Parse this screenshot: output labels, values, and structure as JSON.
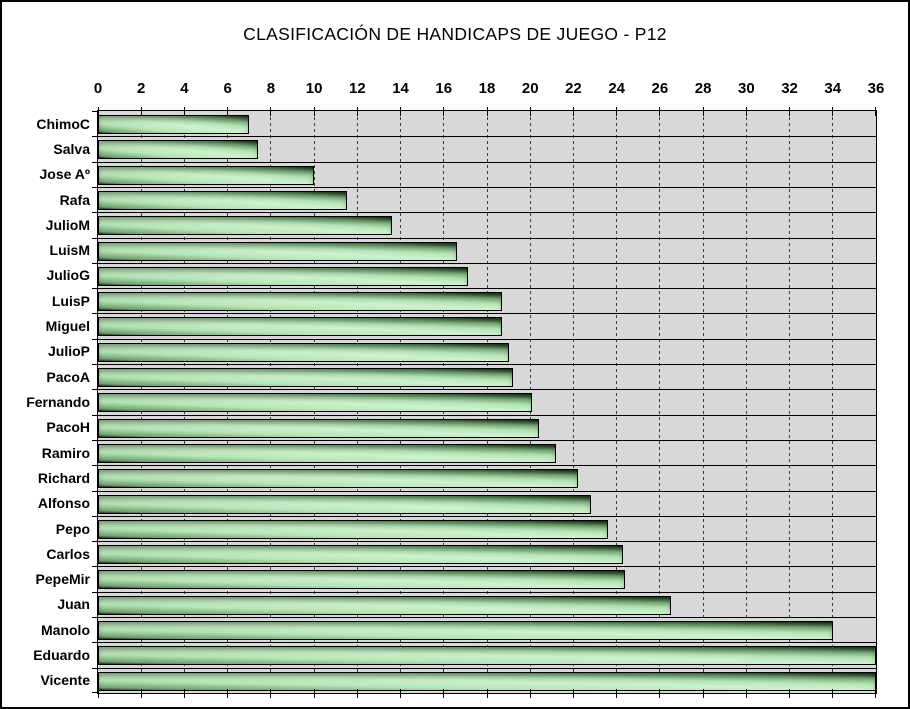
{
  "chart_data": {
    "type": "bar",
    "orientation": "horizontal",
    "title": "CLASIFICACIÓN DE HANDICAPS DE JUEGO - P12",
    "categories": [
      "ChimoC",
      "Salva",
      "Jose Aº",
      "Rafa",
      "JulioM",
      "LuisM",
      "JulioG",
      "LuisP",
      "Miguel",
      "JulioP",
      "PacoA",
      "Fernando",
      "PacoH",
      "Ramiro",
      "Richard",
      "Alfonso",
      "Pepo",
      "Carlos",
      "PepeMir",
      "Juan",
      "Manolo",
      "Eduardo",
      "Vicente"
    ],
    "values": [
      7.0,
      7.4,
      10.0,
      11.5,
      13.6,
      16.6,
      17.1,
      18.7,
      18.7,
      19.0,
      19.2,
      20.1,
      20.4,
      21.2,
      22.2,
      22.8,
      23.6,
      24.3,
      24.4,
      26.5,
      34.0,
      36.0,
      36.0
    ],
    "xlabel": "",
    "ylabel": "",
    "xlim": [
      0,
      36
    ],
    "x_tick_step": 2,
    "x_tick_labels": [
      "0",
      "2",
      "4",
      "6",
      "8",
      "10",
      "12",
      "14",
      "16",
      "18",
      "20",
      "22",
      "24",
      "26",
      "28",
      "30",
      "32",
      "34",
      "36"
    ],
    "grid": {
      "vertical_major_gridlines": true,
      "gridline_style": "dashed",
      "row_separator_lines": true
    },
    "legend": "none",
    "colors": {
      "chart_background": "#ffffff",
      "plot_background": "#d8d8d8",
      "bar_fill_light": "#cdf2cd",
      "bar_fill_dark": "#1e2f1e",
      "bar_border": "#000000",
      "gridline": "#3c3c3c",
      "text": "#000000",
      "frame_border": "#000000"
    }
  }
}
